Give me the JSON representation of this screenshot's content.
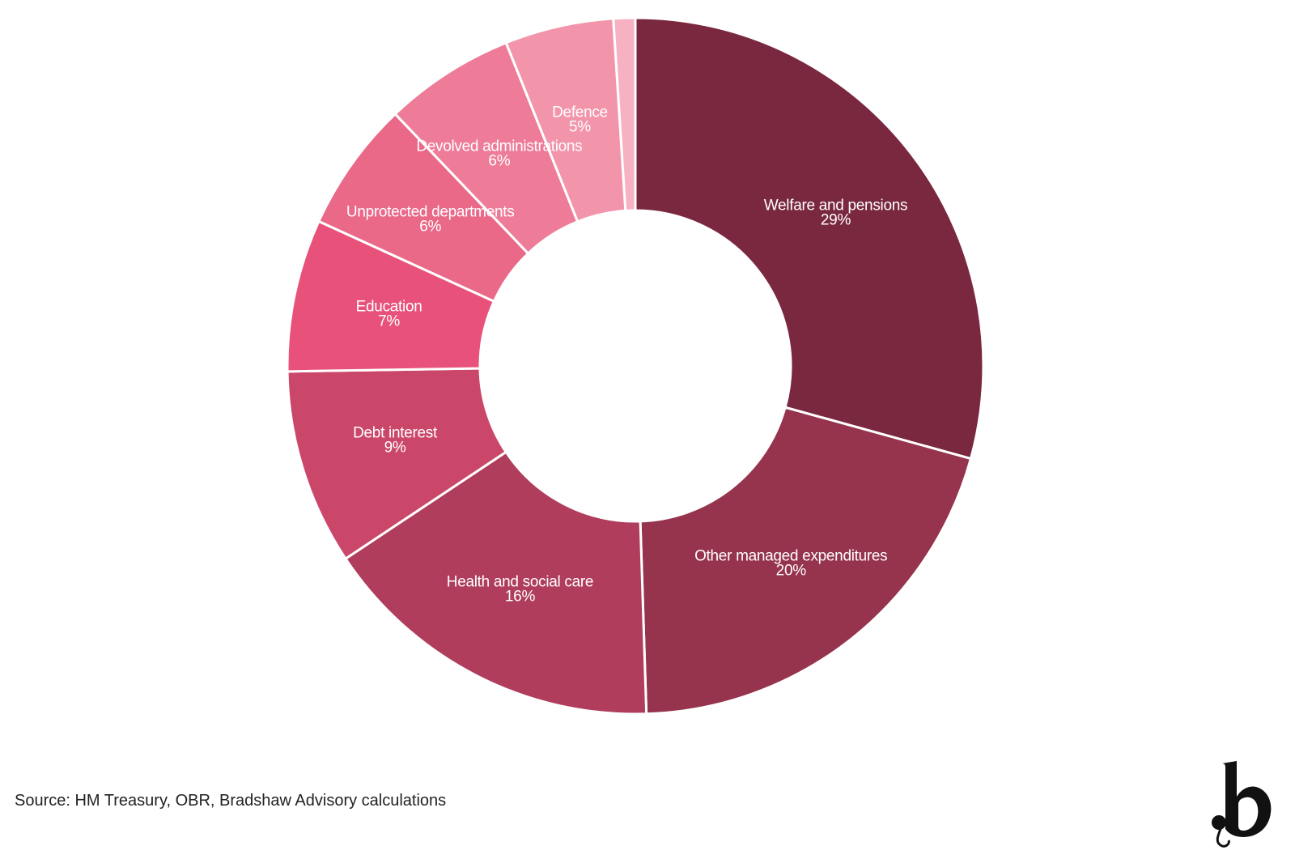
{
  "chart_data": {
    "type": "pie",
    "donut": true,
    "title": "",
    "slices": [
      {
        "label": "Welfare and pensions",
        "value": 29,
        "value_label": "29%",
        "color": "#7A283F"
      },
      {
        "label": "Other managed expenditures",
        "value": 20,
        "value_label": "20%",
        "color": "#96334D"
      },
      {
        "label": "Health and social care",
        "value": 16,
        "value_label": "16%",
        "color": "#AF3D5B"
      },
      {
        "label": "Debt interest",
        "value": 9,
        "value_label": "9%",
        "color": "#CB4769"
      },
      {
        "label": "Education",
        "value": 7,
        "value_label": "7%",
        "color": "#E8527A"
      },
      {
        "label": "Unprotected departments",
        "value": 6,
        "value_label": "6%",
        "color": "#EA6888"
      },
      {
        "label": "Devolved administrations",
        "value": 6,
        "value_label": "6%",
        "color": "#EE7C98"
      },
      {
        "label": "Defence",
        "value": 5,
        "value_label": "5%",
        "color": "#F295AB"
      },
      {
        "label": "",
        "value": 1,
        "value_label": "",
        "color": "#F6B2C2"
      }
    ]
  },
  "footer": {
    "source": "Source: HM Treasury, OBR, Bradshaw Advisory calculations"
  },
  "brand": {
    "logo_icon": "bradshaw-b-logo-icon",
    "logo_color": "#111111"
  }
}
